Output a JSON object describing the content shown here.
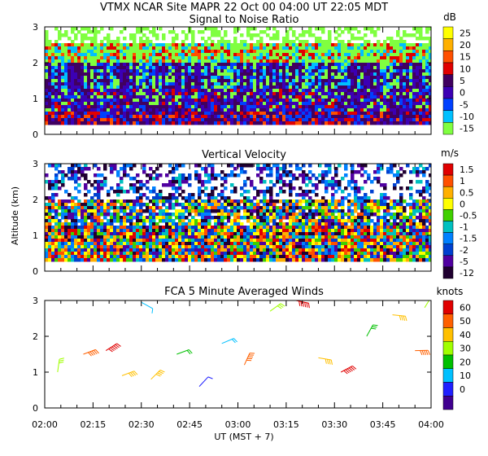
{
  "header": {
    "line": "VTMX  NCAR Site  MAPR 22 Oct 00  04:00 UT  22:05  MDT"
  },
  "axes": {
    "ylabel": "Altitude (km)",
    "xlabel": "UT  (MST + 7)",
    "yticks": [
      "0",
      "1",
      "2",
      "3"
    ],
    "xticks": [
      "02:00",
      "02:15",
      "02:30",
      "02:45",
      "03:00",
      "03:15",
      "03:30",
      "03:45",
      "04:00"
    ],
    "xrange_minutes": [
      0,
      120
    ],
    "yrange_km": [
      0,
      3
    ]
  },
  "chart_data": [
    {
      "type": "heatmap",
      "title": "Signal to Noise Ratio",
      "units": "dB",
      "colorbar": {
        "labels": [
          "25",
          "20",
          "15",
          "10",
          "5",
          "0",
          "-5",
          "-10",
          "-15"
        ],
        "colors": [
          "#ffff00",
          "#ffb000",
          "#ff5000",
          "#e00000",
          "#400060",
          "#3c00b4",
          "#0040ff",
          "#00c0ff",
          "#80ff40"
        ]
      },
      "x": "time UT 02:00-04:00",
      "y": "altitude 0.3-3 km",
      "notes": "Lowest ~0.7 km dominated by high SNR (red/purple); green/low SNR above ~2 km"
    },
    {
      "type": "heatmap",
      "title": "Vertical Velocity",
      "units": "m/s",
      "colorbar": {
        "labels": [
          "1.5",
          "1",
          "0.5",
          "0",
          "-0.5",
          "-1",
          "-1.5",
          "-2",
          "-5",
          "-12"
        ],
        "colors": [
          "#e00000",
          "#ff5000",
          "#ffb000",
          "#ffff00",
          "#40d000",
          "#00c0c0",
          "#0080ff",
          "#0040d0",
          "#5000a0",
          "#200030"
        ]
      },
      "x": "time UT 02:00-04:00",
      "y": "altitude 0.3-3 km",
      "notes": "Mixed up/down motions; missing data (white) above ~2 km"
    },
    {
      "type": "scatter",
      "title": "FCA 5 Minute Averaged Winds",
      "units": "knots",
      "colorbar": {
        "labels": [
          "60",
          "50",
          "40",
          "30",
          "20",
          "10",
          "0"
        ],
        "colors": [
          "#e00000",
          "#ff6000",
          "#ffc000",
          "#a0ff00",
          "#00c000",
          "#00c0ff",
          "#2020ff",
          "#400090"
        ]
      },
      "notes": "Wind barbs every 5 min at multiple heights; speeds mostly 20-50 knots",
      "barbs_sample": [
        {
          "time_min": 4,
          "alt_km": 1.0,
          "speed_kt": 30
        },
        {
          "time_min": 12,
          "alt_km": 1.5,
          "speed_kt": 45
        },
        {
          "time_min": 19,
          "alt_km": 1.6,
          "speed_kt": 55
        },
        {
          "time_min": 24,
          "alt_km": 0.9,
          "speed_kt": 40
        },
        {
          "time_min": 30,
          "alt_km": 2.95,
          "speed_kt": 10
        },
        {
          "time_min": 33,
          "alt_km": 0.8,
          "speed_kt": 35
        },
        {
          "time_min": 41,
          "alt_km": 1.5,
          "speed_kt": 20
        },
        {
          "time_min": 48,
          "alt_km": 0.6,
          "speed_kt": 5
        },
        {
          "time_min": 55,
          "alt_km": 1.8,
          "speed_kt": 15
        },
        {
          "time_min": 62,
          "alt_km": 1.2,
          "speed_kt": 50
        },
        {
          "time_min": 70,
          "alt_km": 2.7,
          "speed_kt": 30
        },
        {
          "time_min": 78,
          "alt_km": 3.0,
          "speed_kt": 60
        },
        {
          "time_min": 85,
          "alt_km": 1.4,
          "speed_kt": 40
        },
        {
          "time_min": 92,
          "alt_km": 1.0,
          "speed_kt": 55
        },
        {
          "time_min": 100,
          "alt_km": 2.0,
          "speed_kt": 25
        },
        {
          "time_min": 108,
          "alt_km": 2.6,
          "speed_kt": 35
        },
        {
          "time_min": 115,
          "alt_km": 1.6,
          "speed_kt": 50
        },
        {
          "time_min": 118,
          "alt_km": 2.8,
          "speed_kt": 30
        }
      ]
    }
  ]
}
